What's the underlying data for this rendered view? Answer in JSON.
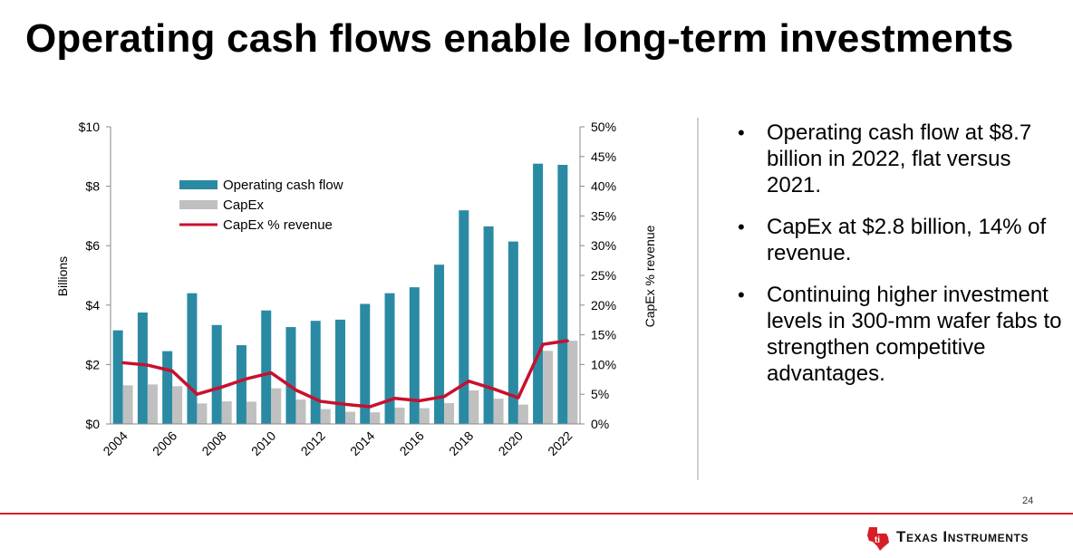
{
  "slide": {
    "title": "Operating cash flows enable long-term investments",
    "page_number": "24",
    "logo_text": "Texas Instruments",
    "bullets": [
      "Operating cash flow at $8.7 billion in 2022, flat versus 2021.",
      "CapEx at $2.8 billion, 14% of revenue.",
      "Continuing higher investment levels in 300-mm wafer fabs to strengthen competitive advantages."
    ]
  },
  "colors": {
    "ocf": "#2a8aa3",
    "capex": "#c0c0c0",
    "pct_line": "#c8102e",
    "accent_red": "#d71e28"
  },
  "chart_data": {
    "type": "bar",
    "categories": [
      "2004",
      "2005",
      "2006",
      "2007",
      "2008",
      "2009",
      "2010",
      "2011",
      "2012",
      "2013",
      "2014",
      "2015",
      "2016",
      "2017",
      "2018",
      "2019",
      "2020",
      "2021",
      "2022"
    ],
    "x_tick_labels": [
      "2004",
      "2006",
      "2008",
      "2010",
      "2012",
      "2014",
      "2016",
      "2018",
      "2020",
      "2022"
    ],
    "series": [
      {
        "name": "Operating cash flow",
        "kind": "bar",
        "axis": "left",
        "values": [
          3.15,
          3.75,
          2.45,
          4.4,
          3.33,
          2.65,
          3.82,
          3.26,
          3.47,
          3.51,
          4.04,
          4.4,
          4.6,
          5.36,
          7.19,
          6.65,
          6.14,
          8.76,
          8.72
        ]
      },
      {
        "name": "CapEx",
        "kind": "bar",
        "axis": "left",
        "values": [
          1.3,
          1.33,
          1.27,
          0.69,
          0.76,
          0.75,
          1.2,
          0.82,
          0.5,
          0.41,
          0.39,
          0.55,
          0.53,
          0.7,
          1.13,
          0.85,
          0.65,
          2.46,
          2.8
        ]
      },
      {
        "name": "CapEx % revenue",
        "kind": "line",
        "axis": "right",
        "values": [
          10.3,
          9.9,
          8.9,
          5.0,
          6.2,
          7.6,
          8.6,
          5.7,
          3.8,
          3.3,
          2.9,
          4.3,
          3.9,
          4.6,
          7.2,
          5.9,
          4.4,
          13.4,
          14.0
        ]
      }
    ],
    "ylabel": "Billions",
    "y2label": "CapEx % revenue",
    "ylim": [
      0,
      10
    ],
    "y2lim": [
      0,
      50
    ],
    "y_ticks": [
      "$0",
      "$2",
      "$4",
      "$6",
      "$8",
      "$10"
    ],
    "y2_ticks": [
      "0%",
      "5%",
      "10%",
      "15%",
      "20%",
      "25%",
      "30%",
      "35%",
      "40%",
      "45%",
      "50%"
    ],
    "legend_position": "top-left",
    "grid": false
  }
}
